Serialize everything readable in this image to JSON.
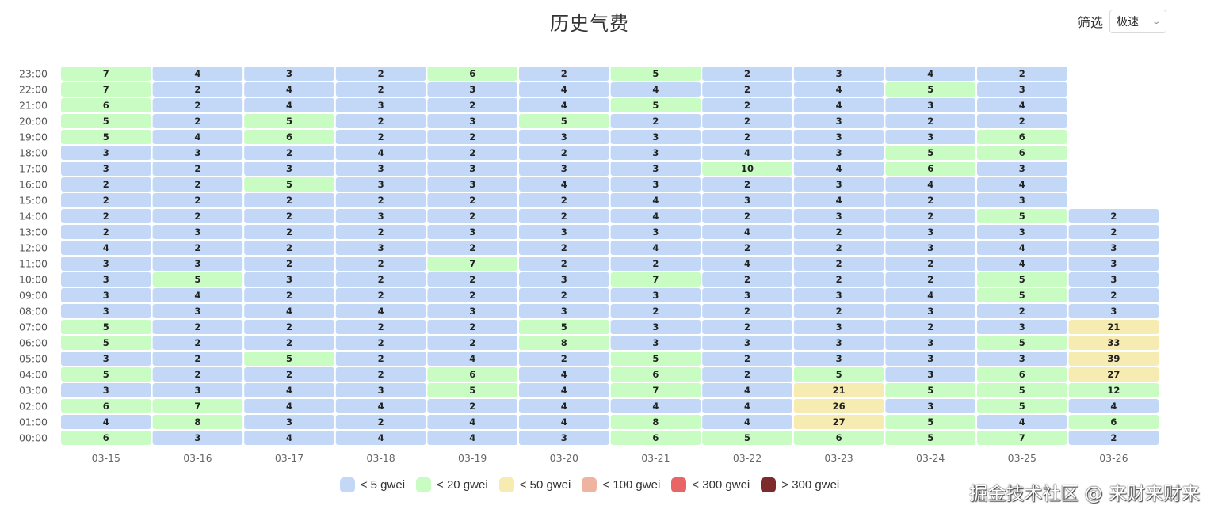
{
  "title": "历史气费",
  "filter": {
    "label": "筛选",
    "selected": "极速"
  },
  "colors": {
    "lt5": "#c2d8f6",
    "lt20": "#c9fcc2",
    "lt50": "#f6ebb0",
    "lt100": "#eeb4a0",
    "lt300": "#e96464",
    "gt300": "#7c2a2a"
  },
  "watermark": "掘金技术社区 @ 来财来财来",
  "chart_data": {
    "type": "heatmap",
    "title": "历史气费",
    "x": [
      "03-15",
      "03-16",
      "03-17",
      "03-18",
      "03-19",
      "03-20",
      "03-21",
      "03-22",
      "03-23",
      "03-24",
      "03-25",
      "03-26"
    ],
    "y": [
      "00:00",
      "01:00",
      "02:00",
      "03:00",
      "04:00",
      "05:00",
      "06:00",
      "07:00",
      "08:00",
      "09:00",
      "10:00",
      "11:00",
      "12:00",
      "13:00",
      "14:00",
      "15:00",
      "16:00",
      "17:00",
      "18:00",
      "19:00",
      "20:00",
      "21:00",
      "22:00",
      "23:00"
    ],
    "values": [
      [
        6,
        3,
        4,
        4,
        4,
        3,
        6,
        5,
        6,
        5,
        7,
        2
      ],
      [
        4,
        8,
        3,
        2,
        4,
        4,
        8,
        4,
        27,
        5,
        4,
        6
      ],
      [
        6,
        7,
        4,
        4,
        2,
        4,
        4,
        4,
        26,
        3,
        5,
        4
      ],
      [
        3,
        3,
        4,
        3,
        5,
        4,
        7,
        4,
        21,
        5,
        5,
        12
      ],
      [
        5,
        2,
        2,
        2,
        6,
        4,
        6,
        2,
        5,
        3,
        6,
        27
      ],
      [
        3,
        2,
        5,
        2,
        4,
        2,
        5,
        2,
        3,
        3,
        3,
        39
      ],
      [
        5,
        2,
        2,
        2,
        2,
        8,
        3,
        3,
        3,
        3,
        5,
        33
      ],
      [
        5,
        2,
        2,
        2,
        2,
        5,
        3,
        2,
        3,
        2,
        3,
        21
      ],
      [
        3,
        3,
        4,
        4,
        3,
        3,
        2,
        2,
        2,
        3,
        2,
        3
      ],
      [
        3,
        4,
        2,
        2,
        2,
        2,
        3,
        3,
        3,
        4,
        5,
        2
      ],
      [
        3,
        5,
        3,
        2,
        2,
        3,
        7,
        2,
        2,
        2,
        5,
        3
      ],
      [
        3,
        3,
        2,
        2,
        7,
        2,
        2,
        4,
        2,
        2,
        4,
        3
      ],
      [
        4,
        2,
        2,
        3,
        2,
        2,
        4,
        2,
        2,
        3,
        4,
        3
      ],
      [
        2,
        3,
        2,
        2,
        3,
        3,
        3,
        4,
        2,
        3,
        3,
        2
      ],
      [
        2,
        2,
        2,
        3,
        2,
        2,
        4,
        2,
        3,
        2,
        5,
        2
      ],
      [
        2,
        2,
        2,
        2,
        2,
        2,
        4,
        3,
        4,
        2,
        3,
        null
      ],
      [
        2,
        2,
        5,
        3,
        3,
        4,
        3,
        2,
        3,
        4,
        4,
        null
      ],
      [
        3,
        2,
        3,
        3,
        3,
        3,
        3,
        10,
        4,
        6,
        3,
        null
      ],
      [
        3,
        3,
        2,
        4,
        2,
        2,
        3,
        4,
        3,
        5,
        6,
        null
      ],
      [
        5,
        4,
        6,
        2,
        2,
        3,
        3,
        2,
        3,
        3,
        6,
        null
      ],
      [
        5,
        2,
        5,
        2,
        3,
        5,
        2,
        2,
        3,
        2,
        2,
        null
      ],
      [
        6,
        2,
        4,
        3,
        2,
        4,
        5,
        2,
        4,
        3,
        4,
        null
      ],
      [
        7,
        2,
        4,
        2,
        3,
        4,
        4,
        2,
        4,
        5,
        3,
        null
      ],
      [
        7,
        4,
        3,
        2,
        6,
        2,
        5,
        2,
        3,
        4,
        2,
        null
      ]
    ],
    "legend": [
      {
        "label": "< 5 gwei",
        "color_key": "lt5",
        "max": 5
      },
      {
        "label": "< 20 gwei",
        "color_key": "lt20",
        "max": 20
      },
      {
        "label": "< 50 gwei",
        "color_key": "lt50",
        "max": 50
      },
      {
        "label": "< 100 gwei",
        "color_key": "lt100",
        "max": 100
      },
      {
        "label": "< 300 gwei",
        "color_key": "lt300",
        "max": 300
      },
      {
        "label": "> 300 gwei",
        "color_key": "gt300",
        "max": null
      }
    ],
    "legend_position": "bottom"
  }
}
